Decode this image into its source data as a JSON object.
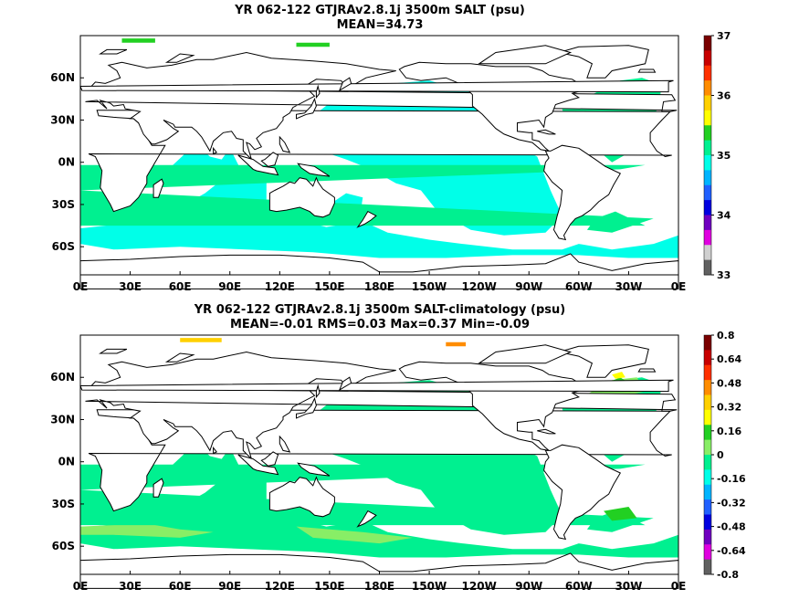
{
  "chart_data": [
    {
      "type": "heatmap",
      "title": "YR 062-122 GTJRAv2.8.1j 3500m SALT (psu)",
      "subtitle": "MEAN=34.73",
      "x_tick_labels": [
        "0E",
        "30E",
        "60E",
        "90E",
        "120E",
        "150E",
        "180E",
        "150W",
        "120W",
        "90W",
        "60W",
        "30W",
        "0E"
      ],
      "y_tick_labels": [
        "60N",
        "30N",
        "0N",
        "30S",
        "60S"
      ],
      "x_range_lon": [
        0,
        360
      ],
      "y_range_lat": [
        -80,
        90
      ],
      "colorbar": {
        "ticks": [
          "37",
          "36",
          "35",
          "34",
          "33"
        ],
        "range": [
          33,
          37
        ],
        "colors": [
          "#7a0000",
          "#c80000",
          "#ff3000",
          "#ff8c00",
          "#ffd000",
          "#ffff00",
          "#22d022",
          "#00f090",
          "#00ffe8",
          "#00b4ff",
          "#2060ff",
          "#0000e0",
          "#7000c0",
          "#e000e0",
          "#d0d0d0",
          "#606060"
        ]
      },
      "dominant_values": {
        "pacific_indian_deep": "34.6-34.7",
        "atlantic_deep": "34.9-35.0",
        "north_atlantic_max": "35.0-35.1"
      }
    },
    {
      "type": "heatmap",
      "title": "YR 062-122 GTJRAv2.8.1j 3500m SALT-climatology (psu)",
      "subtitle": "MEAN=-0.01   RMS=0.03   Max=0.37   Min=-0.09",
      "x_tick_labels": [
        "0E",
        "30E",
        "60E",
        "90E",
        "120E",
        "150E",
        "180E",
        "150W",
        "120W",
        "90W",
        "60W",
        "30W",
        "0E"
      ],
      "y_tick_labels": [
        "60N",
        "30N",
        "0N",
        "30S",
        "60S"
      ],
      "x_range_lon": [
        0,
        360
      ],
      "y_range_lat": [
        -80,
        90
      ],
      "colorbar": {
        "ticks": [
          "0.8",
          "0.64",
          "0.48",
          "0.32",
          "0.16",
          "0",
          "-0.16",
          "-0.32",
          "-0.48",
          "-0.64",
          "-0.8"
        ],
        "range": [
          -0.8,
          0.8
        ],
        "colors": [
          "#7a0000",
          "#c80000",
          "#ff3000",
          "#ff8c00",
          "#ffd000",
          "#ffff00",
          "#22d022",
          "#88ee66",
          "#00f090",
          "#00ffe8",
          "#00b4ff",
          "#2060ff",
          "#0000e0",
          "#7000c0",
          "#e000e0",
          "#606060"
        ]
      },
      "dominant_values": {
        "most_ocean": "0 to -0.08",
        "southern_ocean_bands": "0 to 0.08",
        "north_atlantic_patches": "0.16-0.32"
      }
    }
  ],
  "colors": {
    "cyan": "#00ffe8",
    "seagreen": "#00f090",
    "lightgreen": "#88ee66",
    "green": "#22d022",
    "yellow": "#ffff00",
    "gold": "#ffd000",
    "orange": "#ff8c00",
    "land": "#ffffff",
    "coast": "#000000"
  }
}
